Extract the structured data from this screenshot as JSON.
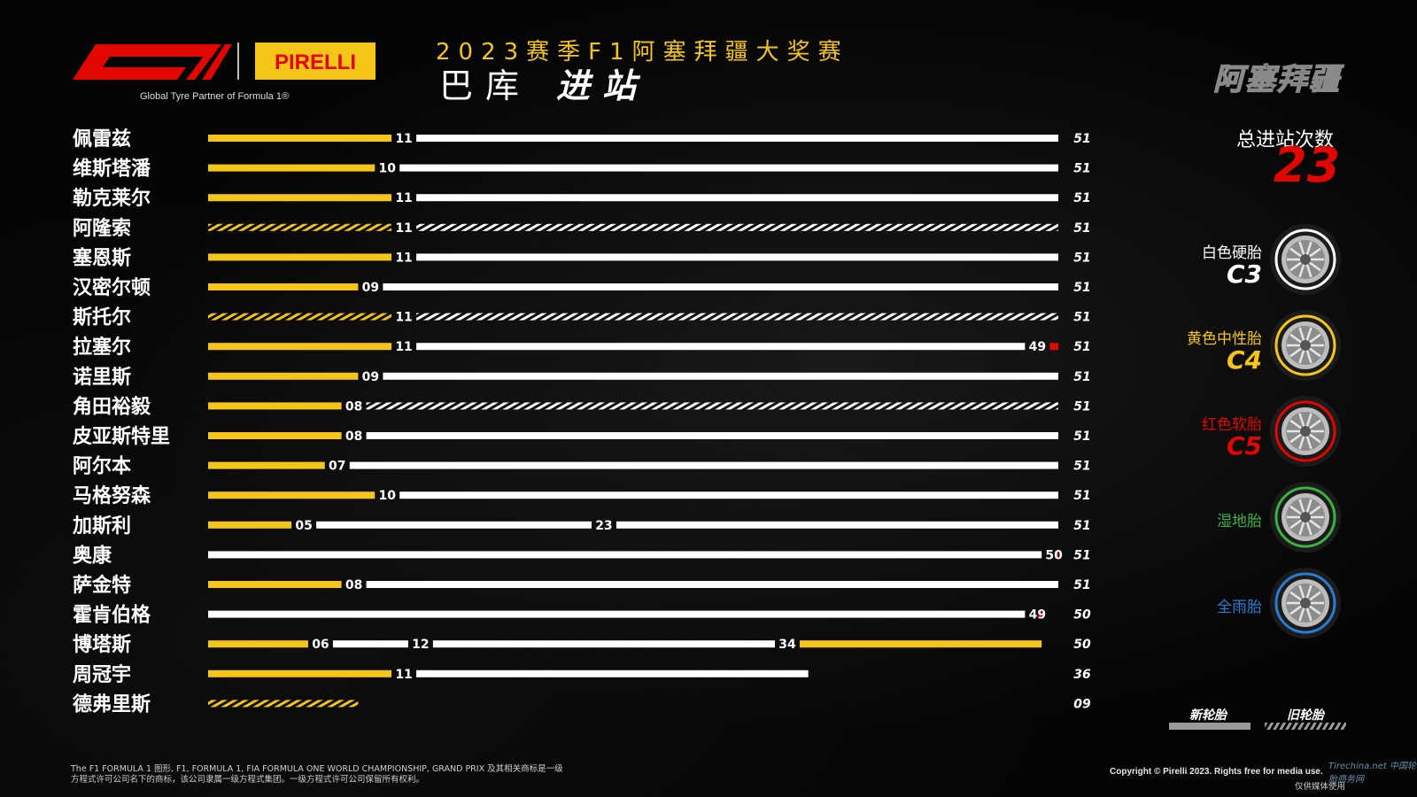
{
  "header": {
    "tagline": "Global Tyre Partner of Formula 1®",
    "season_title": "2023赛季F1阿塞拜疆大奖赛",
    "venue": "巴库",
    "section": "进站",
    "track_name": "阿塞拜疆",
    "logos": {
      "f1": "F1 logo",
      "pirelli": "PIRELLI"
    }
  },
  "summary": {
    "total_label": "总进站次数",
    "total_value": "23"
  },
  "compounds": [
    {
      "name": "白色硬胎",
      "code": "C3",
      "color": "#ffffff"
    },
    {
      "name": "黄色中性胎",
      "code": "C4",
      "color": "#f5c518"
    },
    {
      "name": "红色软胎",
      "code": "C5",
      "color": "#e10600"
    },
    {
      "name": "湿地胎",
      "code": "",
      "color": "#3cb043"
    },
    {
      "name": "全雨胎",
      "code": "",
      "color": "#2a7bd4"
    }
  ],
  "legend": {
    "new": "新轮胎",
    "used": "旧轮胎"
  },
  "footer": {
    "disclaimer": "The F1 FORMULA 1 图形, F1, FORMULA 1, FIA FORMULA ONE WORLD CHAMPIONSHIP, GRAND PRIX 及其相关商标是一级方程式许可公司名下的商标，该公司隶属一级方程式集团。一级方程式许可公司保留所有权利。",
    "copyright": "Copyright © Pirelli 2023. Rights free for media use.",
    "media_note": "仅供媒体使用",
    "watermark": "Tirechina.net 中国轮胎商务网"
  },
  "chart_data": {
    "type": "bar",
    "title": "进站",
    "x_unit": "laps",
    "xlim": [
      0,
      51
    ],
    "colors": {
      "hard": "#ffffff",
      "medium": "#f5c518",
      "soft": "#e10600"
    },
    "drivers": [
      {
        "name": "佩雷兹",
        "finish": "51",
        "stints": [
          {
            "compound": "medium",
            "from": 0,
            "to": 11,
            "used": false
          },
          {
            "compound": "hard",
            "from": 11,
            "to": 51,
            "used": false
          }
        ],
        "stop_labels": [
          "11"
        ]
      },
      {
        "name": "维斯塔潘",
        "finish": "51",
        "stints": [
          {
            "compound": "medium",
            "from": 0,
            "to": 10,
            "used": false
          },
          {
            "compound": "hard",
            "from": 10,
            "to": 51,
            "used": false
          }
        ],
        "stop_labels": [
          "10"
        ]
      },
      {
        "name": "勒克莱尔",
        "finish": "51",
        "stints": [
          {
            "compound": "medium",
            "from": 0,
            "to": 11,
            "used": false
          },
          {
            "compound": "hard",
            "from": 11,
            "to": 51,
            "used": false
          }
        ],
        "stop_labels": [
          "11"
        ]
      },
      {
        "name": "阿隆索",
        "finish": "51",
        "stints": [
          {
            "compound": "medium",
            "from": 0,
            "to": 11,
            "used": true
          },
          {
            "compound": "hard",
            "from": 11,
            "to": 51,
            "used": true
          }
        ],
        "stop_labels": [
          "11"
        ]
      },
      {
        "name": "塞恩斯",
        "finish": "51",
        "stints": [
          {
            "compound": "medium",
            "from": 0,
            "to": 11,
            "used": false
          },
          {
            "compound": "hard",
            "from": 11,
            "to": 51,
            "used": false
          }
        ],
        "stop_labels": [
          "11"
        ]
      },
      {
        "name": "汉密尔顿",
        "finish": "51",
        "stints": [
          {
            "compound": "medium",
            "from": 0,
            "to": 9,
            "used": false
          },
          {
            "compound": "hard",
            "from": 9,
            "to": 51,
            "used": false
          }
        ],
        "stop_labels": [
          "09"
        ]
      },
      {
        "name": "斯托尔",
        "finish": "51",
        "stints": [
          {
            "compound": "medium",
            "from": 0,
            "to": 11,
            "used": true
          },
          {
            "compound": "hard",
            "from": 11,
            "to": 51,
            "used": true
          }
        ],
        "stop_labels": [
          "11"
        ]
      },
      {
        "name": "拉塞尔",
        "finish": "51",
        "stints": [
          {
            "compound": "medium",
            "from": 0,
            "to": 11,
            "used": false
          },
          {
            "compound": "hard",
            "from": 11,
            "to": 49,
            "used": false
          },
          {
            "compound": "soft",
            "from": 49,
            "to": 51,
            "used": false
          }
        ],
        "stop_labels": [
          "11",
          "49"
        ]
      },
      {
        "name": "诺里斯",
        "finish": "51",
        "stints": [
          {
            "compound": "medium",
            "from": 0,
            "to": 9,
            "used": false
          },
          {
            "compound": "hard",
            "from": 9,
            "to": 51,
            "used": false
          }
        ],
        "stop_labels": [
          "09"
        ]
      },
      {
        "name": "角田裕毅",
        "finish": "51",
        "stints": [
          {
            "compound": "medium",
            "from": 0,
            "to": 8,
            "used": false
          },
          {
            "compound": "hard",
            "from": 8,
            "to": 51,
            "used": true
          }
        ],
        "stop_labels": [
          "08"
        ]
      },
      {
        "name": "皮亚斯特里",
        "finish": "51",
        "stints": [
          {
            "compound": "medium",
            "from": 0,
            "to": 8,
            "used": false
          },
          {
            "compound": "hard",
            "from": 8,
            "to": 51,
            "used": false
          }
        ],
        "stop_labels": [
          "08"
        ]
      },
      {
        "name": "阿尔本",
        "finish": "51",
        "stints": [
          {
            "compound": "medium",
            "from": 0,
            "to": 7,
            "used": false
          },
          {
            "compound": "hard",
            "from": 7,
            "to": 51,
            "used": false
          }
        ],
        "stop_labels": [
          "07"
        ]
      },
      {
        "name": "马格努森",
        "finish": "51",
        "stints": [
          {
            "compound": "medium",
            "from": 0,
            "to": 10,
            "used": false
          },
          {
            "compound": "hard",
            "from": 10,
            "to": 51,
            "used": false
          }
        ],
        "stop_labels": [
          "10"
        ]
      },
      {
        "name": "加斯利",
        "finish": "51",
        "stints": [
          {
            "compound": "medium",
            "from": 0,
            "to": 5,
            "used": false
          },
          {
            "compound": "hard",
            "from": 5,
            "to": 23,
            "used": false
          },
          {
            "compound": "hard",
            "from": 23,
            "to": 51,
            "used": false
          }
        ],
        "stop_labels": [
          "05",
          "23"
        ]
      },
      {
        "name": "奥康",
        "finish": "51",
        "stints": [
          {
            "compound": "hard",
            "from": 0,
            "to": 50,
            "used": false
          },
          {
            "compound": "soft",
            "from": 50,
            "to": 51,
            "used": false
          }
        ],
        "stop_labels": [
          "50"
        ]
      },
      {
        "name": "萨金特",
        "finish": "51",
        "stints": [
          {
            "compound": "medium",
            "from": 0,
            "to": 8,
            "used": false
          },
          {
            "compound": "hard",
            "from": 8,
            "to": 51,
            "used": false
          }
        ],
        "stop_labels": [
          "08"
        ]
      },
      {
        "name": "霍肯伯格",
        "finish": "50",
        "stints": [
          {
            "compound": "hard",
            "from": 0,
            "to": 49,
            "used": false
          },
          {
            "compound": "soft",
            "from": 49,
            "to": 50,
            "used": false
          }
        ],
        "stop_labels": [
          "49"
        ]
      },
      {
        "name": "博塔斯",
        "finish": "50",
        "stints": [
          {
            "compound": "medium",
            "from": 0,
            "to": 6,
            "used": false
          },
          {
            "compound": "hard",
            "from": 6,
            "to": 12,
            "used": false
          },
          {
            "compound": "hard",
            "from": 12,
            "to": 34,
            "used": false
          },
          {
            "compound": "medium",
            "from": 34,
            "to": 50,
            "used": false
          }
        ],
        "stop_labels": [
          "06",
          "12",
          "34"
        ]
      },
      {
        "name": "周冠宇",
        "finish": "36",
        "stints": [
          {
            "compound": "medium",
            "from": 0,
            "to": 11,
            "used": false
          },
          {
            "compound": "hard",
            "from": 11,
            "to": 36,
            "used": false
          }
        ],
        "stop_labels": [
          "11"
        ]
      },
      {
        "name": "德弗里斯",
        "finish": "09",
        "stints": [
          {
            "compound": "medium",
            "from": 0,
            "to": 9,
            "used": true
          }
        ],
        "stop_labels": []
      }
    ]
  }
}
